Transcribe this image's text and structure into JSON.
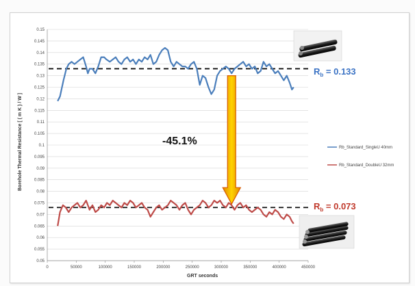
{
  "chart_data": {
    "type": "line",
    "title": "",
    "xlabel": "GRT seconds",
    "ylabel": "Borehole Thermal Resistance [ ( m K ) / W ]",
    "xlim": [
      0,
      450000
    ],
    "ylim": [
      0.05,
      0.15
    ],
    "x_ticks": [
      "0",
      "50000",
      "100000",
      "150000",
      "200000",
      "250000",
      "300000",
      "350000",
      "400000",
      "450000"
    ],
    "y_ticks": [
      "0.05",
      "0.055",
      "0.06",
      "0.065",
      "0.07",
      "0.075",
      "0.08",
      "0.085",
      "0.09",
      "0.095",
      "0.1",
      "0.105",
      "0.11",
      "0.115",
      "0.12",
      "0.125",
      "0.13",
      "0.135",
      "0.14",
      "0.145",
      "0.15"
    ],
    "grid": "horizontal",
    "legend_position": "right",
    "series": [
      {
        "name": "Rb_Standard_SingleU 40mm",
        "color": "#4a7ebb",
        "x": [
          18000,
          22000,
          28000,
          33000,
          37000,
          42000,
          47000,
          52000,
          57000,
          62000,
          67000,
          70000,
          73000,
          78000,
          83000,
          88000,
          93000,
          98000,
          102000,
          108000,
          113000,
          118000,
          123000,
          128000,
          133000,
          138000,
          143000,
          148000,
          153000,
          158000,
          163000,
          168000,
          173000,
          178000,
          183000,
          188000,
          193000,
          198000,
          203000,
          208000,
          213000,
          218000,
          223000,
          228000,
          233000,
          238000,
          243000,
          248000,
          253000,
          258000,
          263000,
          268000,
          273000,
          278000,
          283000,
          288000,
          293000,
          298000,
          303000,
          308000,
          313000,
          318000,
          323000,
          328000,
          333000,
          338000,
          343000,
          348000,
          353000,
          358000,
          363000,
          368000,
          373000,
          378000,
          383000,
          388000,
          393000,
          398000,
          403000,
          408000,
          413000,
          418000,
          422000,
          425000
        ],
        "values": [
          0.119,
          0.121,
          0.128,
          0.133,
          0.135,
          0.136,
          0.135,
          0.136,
          0.137,
          0.138,
          0.134,
          0.131,
          0.133,
          0.133,
          0.131,
          0.134,
          0.138,
          0.138,
          0.137,
          0.136,
          0.137,
          0.138,
          0.136,
          0.135,
          0.137,
          0.138,
          0.136,
          0.137,
          0.135,
          0.137,
          0.136,
          0.138,
          0.137,
          0.139,
          0.135,
          0.136,
          0.139,
          0.141,
          0.142,
          0.141,
          0.136,
          0.134,
          0.136,
          0.135,
          0.134,
          0.134,
          0.133,
          0.135,
          0.136,
          0.133,
          0.126,
          0.13,
          0.129,
          0.125,
          0.122,
          0.124,
          0.13,
          0.132,
          0.133,
          0.134,
          0.133,
          0.131,
          0.133,
          0.134,
          0.135,
          0.136,
          0.134,
          0.135,
          0.133,
          0.134,
          0.131,
          0.132,
          0.136,
          0.134,
          0.135,
          0.133,
          0.131,
          0.132,
          0.13,
          0.128,
          0.13,
          0.127,
          0.124,
          0.125
        ]
      },
      {
        "name": "Rb_Standard_DoubleU 32mm",
        "color": "#be4b48",
        "x": [
          18000,
          22000,
          27000,
          32000,
          37000,
          42000,
          47000,
          52000,
          57000,
          62000,
          67000,
          70000,
          73000,
          78000,
          83000,
          88000,
          93000,
          98000,
          103000,
          108000,
          113000,
          118000,
          123000,
          128000,
          133000,
          138000,
          143000,
          148000,
          153000,
          158000,
          163000,
          168000,
          173000,
          178000,
          183000,
          188000,
          193000,
          198000,
          203000,
          208000,
          213000,
          218000,
          223000,
          228000,
          233000,
          238000,
          243000,
          248000,
          253000,
          258000,
          263000,
          268000,
          273000,
          278000,
          283000,
          288000,
          293000,
          298000,
          303000,
          308000,
          313000,
          318000,
          323000,
          328000,
          333000,
          338000,
          343000,
          348000,
          353000,
          358000,
          363000,
          368000,
          373000,
          378000,
          383000,
          388000,
          393000,
          398000,
          403000,
          408000,
          413000,
          418000,
          422000,
          425000
        ],
        "values": [
          0.065,
          0.071,
          0.074,
          0.073,
          0.071,
          0.073,
          0.074,
          0.075,
          0.073,
          0.074,
          0.076,
          0.074,
          0.072,
          0.074,
          0.071,
          0.072,
          0.074,
          0.073,
          0.075,
          0.074,
          0.076,
          0.075,
          0.074,
          0.073,
          0.075,
          0.074,
          0.076,
          0.075,
          0.073,
          0.074,
          0.075,
          0.073,
          0.072,
          0.069,
          0.071,
          0.073,
          0.074,
          0.072,
          0.073,
          0.074,
          0.076,
          0.075,
          0.074,
          0.072,
          0.074,
          0.075,
          0.072,
          0.07,
          0.072,
          0.073,
          0.074,
          0.076,
          0.075,
          0.073,
          0.074,
          0.076,
          0.075,
          0.076,
          0.074,
          0.073,
          0.075,
          0.074,
          0.072,
          0.074,
          0.075,
          0.073,
          0.074,
          0.072,
          0.071,
          0.072,
          0.073,
          0.072,
          0.07,
          0.069,
          0.071,
          0.07,
          0.072,
          0.071,
          0.069,
          0.068,
          0.07,
          0.069,
          0.067,
          0.066
        ]
      }
    ],
    "reference_lines": [
      {
        "label_main": "R",
        "label_sub": "b",
        "label_value": " = 0.133",
        "y": 0.133,
        "color": "#3a72c4"
      },
      {
        "label_main": "R",
        "label_sub": "b",
        "label_value": " = 0.073",
        "y": 0.073,
        "color": "#c0392b"
      }
    ],
    "annotation": {
      "text": "-45.1%",
      "arrow_x": 318000,
      "arrow_from": 0.13,
      "arrow_to": 0.0745
    }
  },
  "images": [
    {
      "name": "single-u-pipe-photo"
    },
    {
      "name": "double-u-pipe-photo"
    }
  ]
}
